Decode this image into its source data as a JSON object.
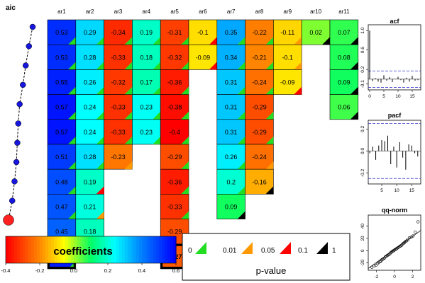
{
  "chart_data": [
    {
      "type": "heatmap",
      "columns": [
        "ar1",
        "ar2",
        "ar3",
        "ar4",
        "ar5",
        "ar6",
        "ar7",
        "ar8",
        "ar9",
        "ar10",
        "ar11"
      ],
      "rows": [
        {
          "cells": [
            {
              "c": 0,
              "v": "0.53",
              "p": "<0.01"
            },
            {
              "c": 1,
              "v": "0.29",
              "p": "<0.01"
            },
            {
              "c": 2,
              "v": "-0.34",
              "p": "<0.01"
            },
            {
              "c": 3,
              "v": "0.19",
              "p": "<0.01"
            },
            {
              "c": 4,
              "v": "-0.31",
              "p": "<0.01"
            },
            {
              "c": 5,
              "v": "-0.1",
              "p": "0.05-0.1"
            },
            {
              "c": 6,
              "v": "0.35",
              "p": "<0.01"
            },
            {
              "c": 7,
              "v": "-0.22",
              "p": "<0.01"
            },
            {
              "c": 8,
              "v": "-0.11",
              "p": "0.01-0.05"
            },
            {
              "c": 9,
              "v": "0.02",
              "p": "0.1-1"
            },
            {
              "c": 10,
              "v": "0.07",
              "p": "0.1-1"
            }
          ]
        },
        {
          "cells": [
            {
              "c": 0,
              "v": "0.53",
              "p": "<0.01"
            },
            {
              "c": 1,
              "v": "0.28",
              "p": "<0.01"
            },
            {
              "c": 2,
              "v": "-0.33",
              "p": "<0.01"
            },
            {
              "c": 3,
              "v": "0.18",
              "p": "<0.01"
            },
            {
              "c": 4,
              "v": "-0.32",
              "p": "<0.01"
            },
            {
              "c": 5,
              "v": "-0.09",
              "p": "0.05-0.1"
            },
            {
              "c": 6,
              "v": "0.34",
              "p": "<0.01"
            },
            {
              "c": 7,
              "v": "-0.21",
              "p": "<0.01"
            },
            {
              "c": 8,
              "v": "-0.1",
              "p": "0.01-0.05"
            },
            {
              "c": 10,
              "v": "0.08",
              "p": "0.1-1"
            }
          ]
        },
        {
          "cells": [
            {
              "c": 0,
              "v": "0.55",
              "p": "<0.01"
            },
            {
              "c": 1,
              "v": "0.26",
              "p": "<0.01"
            },
            {
              "c": 2,
              "v": "-0.32",
              "p": "<0.01"
            },
            {
              "c": 3,
              "v": "0.17",
              "p": "<0.01"
            },
            {
              "c": 4,
              "v": "-0.36",
              "p": "<0.01"
            },
            {
              "c": 6,
              "v": "0.31",
              "p": "<0.01"
            },
            {
              "c": 7,
              "v": "-0.24",
              "p": "<0.01"
            },
            {
              "c": 8,
              "v": "-0.09",
              "p": "0.05-0.1"
            },
            {
              "c": 10,
              "v": "0.09",
              "p": "0.1-1"
            }
          ]
        },
        {
          "cells": [
            {
              "c": 0,
              "v": "0.57",
              "p": "<0.01"
            },
            {
              "c": 1,
              "v": "0.24",
              "p": "<0.01"
            },
            {
              "c": 2,
              "v": "-0.33",
              "p": "<0.01"
            },
            {
              "c": 3,
              "v": "0.23",
              "p": "<0.01"
            },
            {
              "c": 4,
              "v": "-0.38",
              "p": "<0.01"
            },
            {
              "c": 6,
              "v": "0.31",
              "p": "<0.01"
            },
            {
              "c": 7,
              "v": "-0.29",
              "p": "<0.01"
            },
            {
              "c": 10,
              "v": "0.06",
              "p": "0.1-1"
            }
          ]
        },
        {
          "cells": [
            {
              "c": 0,
              "v": "0.57",
              "p": "<0.01"
            },
            {
              "c": 1,
              "v": "0.24",
              "p": "<0.01"
            },
            {
              "c": 2,
              "v": "-0.33",
              "p": "<0.01"
            },
            {
              "c": 3,
              "v": "0.23",
              "p": "<0.01"
            },
            {
              "c": 4,
              "v": "-0.4",
              "p": "<0.01"
            },
            {
              "c": 6,
              "v": "0.31",
              "p": "<0.01"
            },
            {
              "c": 7,
              "v": "-0.29",
              "p": "<0.01"
            }
          ]
        },
        {
          "cells": [
            {
              "c": 0,
              "v": "0.51",
              "p": "<0.01"
            },
            {
              "c": 1,
              "v": "0.28",
              "p": "<0.01"
            },
            {
              "c": 2,
              "v": "-0.23",
              "p": "0.01-0.05"
            },
            {
              "c": 4,
              "v": "-0.29",
              "p": "<0.01"
            },
            {
              "c": 6,
              "v": "0.26",
              "p": "<0.01"
            },
            {
              "c": 7,
              "v": "-0.24",
              "p": "0.01-0.05"
            }
          ]
        },
        {
          "cells": [
            {
              "c": 0,
              "v": "0.48",
              "p": "<0.01"
            },
            {
              "c": 1,
              "v": "0.19",
              "p": "0.05-0.1"
            },
            {
              "c": 4,
              "v": "-0.36",
              "p": "<0.01"
            },
            {
              "c": 6,
              "v": "0.2",
              "p": "<0.01"
            },
            {
              "c": 7,
              "v": "-0.16",
              "p": "0.1-1"
            }
          ]
        },
        {
          "cells": [
            {
              "c": 0,
              "v": "0.47",
              "p": "<0.01"
            },
            {
              "c": 1,
              "v": "0.21",
              "p": "0.01-0.05"
            },
            {
              "c": 4,
              "v": "-0.33",
              "p": "<0.01"
            },
            {
              "c": 6,
              "v": "0.09",
              "p": "0.1-1"
            }
          ]
        },
        {
          "cells": [
            {
              "c": 0,
              "v": "0.45",
              "p": "<0.01"
            },
            {
              "c": 1,
              "v": "0.18",
              "p": "0.1-1"
            },
            {
              "c": 4,
              "v": "-0.29",
              "p": "<0.01"
            }
          ]
        },
        {
          "cells": [
            {
              "c": 0,
              "v": "0.56",
              "p": "<0.01",
              "selected": true
            },
            {
              "c": 4,
              "v": "-0.27",
              "p": "<0.01",
              "selected": true
            }
          ]
        }
      ],
      "color_scale": {
        "min": -0.4,
        "max": 0.6
      },
      "colorbar": {
        "title": "coefficients",
        "ticks": [
          "-0.4",
          "-0.2",
          "0.0",
          "0.2",
          "0.4",
          "0.6"
        ]
      }
    },
    {
      "type": "scatter",
      "title": "aic",
      "values": [
        10,
        9.2,
        8.5,
        7.9,
        7.2,
        6.9,
        6.7,
        6.5,
        6.1,
        5.6,
        4.8
      ],
      "selected_index": 10
    },
    {
      "type": "bar",
      "title": "acf",
      "x_ticks": [
        "0",
        "5",
        "10",
        "15"
      ],
      "y_ticks": [
        "-0.1",
        "0.2",
        "0.6",
        "1.0"
      ],
      "ylim": [
        -0.22,
        1.12
      ],
      "xlim": [
        -0.5,
        18
      ],
      "conf": 0.17,
      "values": [
        1.0,
        -0.04,
        0.02,
        -0.05,
        -0.07,
        0.08,
        -0.03,
        0.04,
        -0.06,
        0.01,
        0.05,
        -0.02,
        -0.07,
        0.03,
        -0.05,
        0.07,
        -0.03,
        -0.02
      ]
    },
    {
      "type": "bar",
      "title": "pacf",
      "x_ticks": [
        "5",
        "10",
        "15"
      ],
      "y_ticks": [
        "-0.2",
        "0.0",
        "0.2"
      ],
      "ylim": [
        -0.3,
        0.28
      ],
      "xlim": [
        0.5,
        18
      ],
      "conf": 0.25,
      "values": [
        -0.02,
        0.04,
        -0.08,
        0.05,
        0.1,
        0.09,
        0.14,
        -0.12,
        0.04,
        -0.15,
        0.08,
        -0.06,
        -0.17,
        0.06,
        0.05,
        -0.02,
        -0.05
      ]
    },
    {
      "type": "scatter",
      "title": "qq-norm",
      "x_ticks": [
        "-2",
        "0",
        "2"
      ],
      "y_ticks": [
        "-20",
        "0",
        "20",
        "40"
      ],
      "xlim": [
        -2.9,
        2.9
      ],
      "ylim": [
        -32,
        58
      ],
      "points": [
        [
          -2.5,
          -27
        ],
        [
          -2.25,
          -25
        ],
        [
          -2.05,
          -24
        ],
        [
          -1.85,
          -21
        ],
        [
          -1.75,
          -19
        ],
        [
          -1.6,
          -18
        ],
        [
          -1.5,
          -17
        ],
        [
          -1.4,
          -15
        ],
        [
          -1.3,
          -14
        ],
        [
          -1.2,
          -13
        ],
        [
          -1.1,
          -12
        ],
        [
          -1.0,
          -10
        ],
        [
          -0.9,
          -9
        ],
        [
          -0.8,
          -8
        ],
        [
          -0.7,
          -7
        ],
        [
          -0.6,
          -6
        ],
        [
          -0.5,
          -5
        ],
        [
          -0.4,
          -3
        ],
        [
          -0.3,
          -2
        ],
        [
          -0.2,
          -1
        ],
        [
          -0.1,
          0
        ],
        [
          0.0,
          1
        ],
        [
          0.1,
          2
        ],
        [
          0.2,
          3
        ],
        [
          0.3,
          4
        ],
        [
          0.4,
          5
        ],
        [
          0.5,
          6
        ],
        [
          0.6,
          7
        ],
        [
          0.7,
          8
        ],
        [
          0.8,
          9
        ],
        [
          0.9,
          11
        ],
        [
          1.0,
          12
        ],
        [
          1.1,
          13
        ],
        [
          1.2,
          15
        ],
        [
          1.35,
          16
        ],
        [
          1.5,
          18
        ],
        [
          1.65,
          21
        ],
        [
          1.85,
          22
        ],
        [
          2.05,
          24
        ],
        [
          2.3,
          30
        ],
        [
          2.6,
          47
        ]
      ],
      "line": [
        [
          -2.9,
          -29
        ],
        [
          2.9,
          33
        ]
      ]
    }
  ],
  "pvalue_legend": {
    "title": "p-value",
    "breaks": [
      "0",
      "0.01",
      "0.05",
      "0.1",
      "1"
    ],
    "colors": [
      "#22dd22",
      "#ff9900",
      "#ff0000",
      "#000000"
    ]
  }
}
